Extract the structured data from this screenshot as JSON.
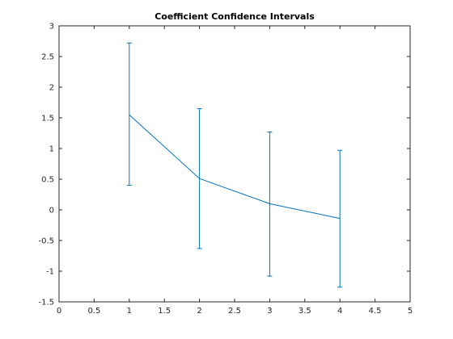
{
  "chart_data": {
    "type": "line",
    "title": "Coefficient Confidence Intervals",
    "xlabel": "",
    "ylabel": "",
    "xlim": [
      0,
      5
    ],
    "ylim": [
      -1.5,
      3
    ],
    "xticks": [
      0,
      0.5,
      1,
      1.5,
      2,
      2.5,
      3,
      3.5,
      4,
      4.5,
      5
    ],
    "yticks": [
      -1.5,
      -1,
      -0.5,
      0,
      0.5,
      1,
      1.5,
      2,
      2.5,
      3
    ],
    "xtick_labels": [
      "0",
      "0.5",
      "1",
      "1.5",
      "2",
      "2.5",
      "3",
      "3.5",
      "4",
      "4.5",
      "5"
    ],
    "ytick_labels": [
      "-1.5",
      "-1",
      "-0.5",
      "0",
      "0.5",
      "1",
      "1.5",
      "2",
      "2.5",
      "3"
    ],
    "grid": false,
    "series": [
      {
        "x": [
          1,
          2,
          3,
          4
        ],
        "values": [
          1.55,
          0.51,
          0.1,
          -0.14
        ],
        "lower": [
          0.4,
          -0.63,
          -1.08,
          -1.26
        ],
        "upper": [
          2.72,
          1.65,
          1.27,
          0.97
        ],
        "color": "#0072BD"
      }
    ]
  }
}
